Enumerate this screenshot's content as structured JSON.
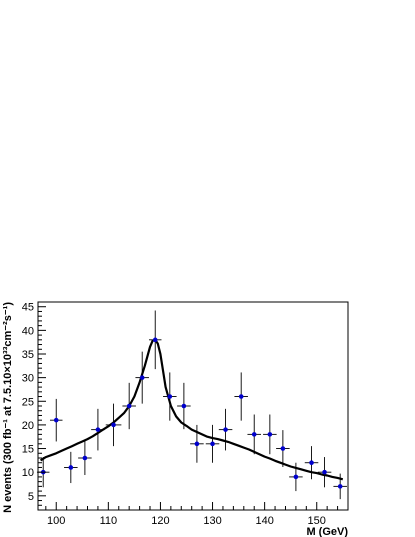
{
  "chart_data": {
    "type": "scatter",
    "xlabel": "M (GeV)",
    "ylabel": "N events (300 fb⁻¹ at 7.5.10×10³³cm⁻²s⁻¹)",
    "xlim": [
      96.5,
      156
    ],
    "ylim": [
      2,
      46
    ],
    "x_ticks": [
      100,
      110,
      120,
      130,
      140,
      150
    ],
    "y_ticks": [
      5,
      10,
      15,
      20,
      25,
      30,
      35,
      40,
      45
    ],
    "grid": false,
    "legend": "none",
    "series": [
      {
        "kind": "points_with_errors",
        "color": "#0000cc",
        "x": [
          97.5,
          100.0,
          102.8,
          105.5,
          108.0,
          111.0,
          114.0,
          116.5,
          119.0,
          121.8,
          124.5,
          127.0,
          130.0,
          132.5,
          135.5,
          138.0,
          141.0,
          143.5,
          146.0,
          149.0,
          151.5,
          154.5
        ],
        "y": [
          10,
          21,
          11,
          13,
          19,
          20,
          24,
          30,
          38,
          26,
          24,
          16,
          16,
          19,
          26,
          18,
          18,
          15,
          9,
          12,
          10,
          7
        ],
        "x_err": [
          1.2,
          1.2,
          1.3,
          1.3,
          1.3,
          1.5,
          1.3,
          1.3,
          1.2,
          1.3,
          1.3,
          1.3,
          1.3,
          1.3,
          1.3,
          1.3,
          1.3,
          1.3,
          1.3,
          1.3,
          1.3,
          1.3
        ],
        "y_err": [
          3.2,
          4.5,
          3.3,
          3.6,
          4.4,
          4.5,
          4.9,
          5.5,
          6.2,
          5.1,
          4.9,
          4.0,
          4.0,
          4.4,
          5.1,
          4.2,
          4.2,
          3.9,
          3.0,
          3.5,
          3.2,
          2.7
        ]
      },
      {
        "kind": "fit_curve",
        "color": "#000000",
        "x": [
          97,
          98,
          99,
          100,
          101,
          102,
          103,
          104,
          105,
          106,
          107,
          108,
          109,
          110,
          111,
          112,
          113,
          114,
          115,
          116,
          117,
          118,
          118.5,
          119,
          119.5,
          120,
          120.5,
          121,
          122,
          123,
          124,
          125,
          126,
          127,
          128,
          129,
          130,
          131,
          132,
          133,
          134,
          135,
          136,
          137,
          138,
          139,
          140,
          141,
          142,
          143,
          144,
          145,
          146,
          147,
          148,
          149,
          150,
          151,
          152,
          153,
          154,
          155
        ],
        "y": [
          12.5,
          13.2,
          13.6,
          14.0,
          14.5,
          15.0,
          15.5,
          16.0,
          16.5,
          17.0,
          17.6,
          18.3,
          19.0,
          19.7,
          20.5,
          21.5,
          22.5,
          24.0,
          26.0,
          29.0,
          32.5,
          36.5,
          37.8,
          38.0,
          37.2,
          35.0,
          31.5,
          28.0,
          24.0,
          21.8,
          20.5,
          19.8,
          19.0,
          18.5,
          18.0,
          17.5,
          17.2,
          17.0,
          16.7,
          16.4,
          16.0,
          15.6,
          15.2,
          14.8,
          14.3,
          13.8,
          13.3,
          12.9,
          12.4,
          12.0,
          11.6,
          11.2,
          10.9,
          10.6,
          10.3,
          10.0,
          9.8,
          9.5,
          9.3,
          9.0,
          8.8,
          8.5
        ]
      }
    ]
  }
}
